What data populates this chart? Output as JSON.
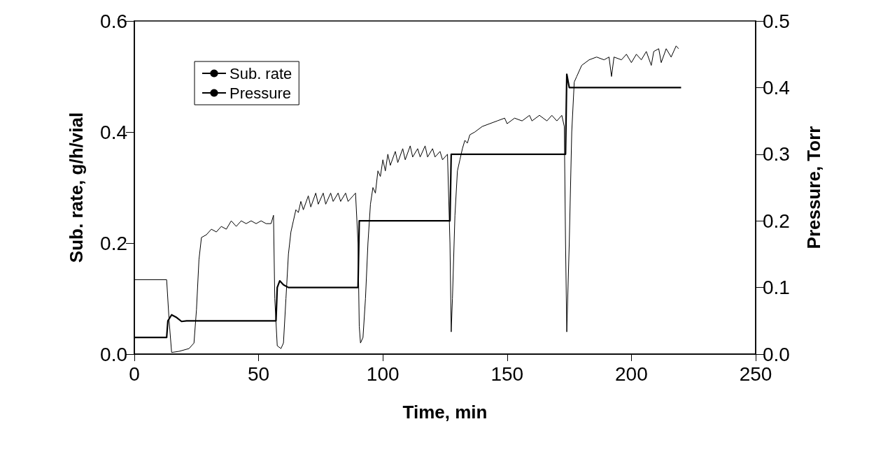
{
  "chart_data": {
    "type": "line",
    "xlabel": "Time, min",
    "ylabel": "Sub. rate, g/h/vial",
    "y2label": "Pressure, Torr",
    "xlim": [
      0,
      250
    ],
    "xticks": [
      0,
      50,
      100,
      150,
      200,
      250
    ],
    "ylim": [
      0,
      0.6
    ],
    "yticks": [
      {
        "value": 0,
        "label": "0.0"
      },
      0.2,
      0.4,
      0.6
    ],
    "y2lim": [
      0,
      0.5
    ],
    "y2ticks": [
      {
        "value": 0,
        "label": "0.0"
      },
      0.1,
      0.2,
      0.3,
      0.4,
      0.5
    ],
    "grid": false,
    "legend": "top left",
    "marker": "none",
    "line_style": "solid",
    "series": [
      {
        "name": "Sub. rate",
        "color": "#000000",
        "x": [
          0,
          13,
          14,
          15,
          18,
          22,
          24,
          25,
          26,
          27,
          29,
          31,
          33,
          35,
          37,
          39,
          41,
          43,
          45,
          47,
          49,
          51,
          53,
          55,
          56,
          56.5,
          57.5,
          59,
          60,
          61,
          62,
          63,
          64,
          65,
          66,
          67,
          68,
          70,
          71,
          73,
          74,
          76,
          77,
          79,
          80,
          82,
          83,
          85,
          86,
          88,
          89,
          90,
          90.5,
          91,
          92,
          93,
          94,
          95,
          96,
          97,
          98,
          99,
          100,
          101,
          102,
          103,
          105,
          106,
          108,
          109,
          111,
          112,
          114,
          115,
          117,
          118,
          120,
          121,
          123,
          124,
          126,
          127,
          127.5,
          128,
          129,
          130,
          131,
          132,
          133,
          134,
          135,
          137,
          140,
          143,
          146,
          149,
          150,
          153,
          156,
          159,
          160,
          163,
          166,
          168,
          170,
          172,
          173,
          173.5,
          174,
          175,
          176,
          177,
          178,
          180,
          183,
          186,
          189,
          191,
          192,
          193,
          196,
          198,
          200,
          202,
          204,
          206,
          208,
          209,
          211,
          212,
          214,
          216,
          218,
          219
        ],
        "values": [
          0.134,
          0.134,
          0.06,
          0.003,
          0.005,
          0.01,
          0.02,
          0.08,
          0.17,
          0.21,
          0.215,
          0.225,
          0.22,
          0.23,
          0.225,
          0.24,
          0.23,
          0.24,
          0.235,
          0.24,
          0.235,
          0.24,
          0.235,
          0.235,
          0.25,
          0.1,
          0.015,
          0.01,
          0.02,
          0.1,
          0.18,
          0.22,
          0.24,
          0.26,
          0.255,
          0.275,
          0.26,
          0.285,
          0.265,
          0.29,
          0.27,
          0.29,
          0.27,
          0.29,
          0.275,
          0.29,
          0.275,
          0.29,
          0.275,
          0.285,
          0.29,
          0.2,
          0.05,
          0.02,
          0.03,
          0.1,
          0.2,
          0.27,
          0.3,
          0.29,
          0.33,
          0.32,
          0.35,
          0.33,
          0.36,
          0.34,
          0.365,
          0.345,
          0.37,
          0.35,
          0.375,
          0.355,
          0.37,
          0.355,
          0.375,
          0.355,
          0.37,
          0.355,
          0.365,
          0.35,
          0.36,
          0.2,
          0.04,
          0.1,
          0.25,
          0.33,
          0.35,
          0.37,
          0.385,
          0.38,
          0.395,
          0.4,
          0.41,
          0.415,
          0.42,
          0.425,
          0.415,
          0.425,
          0.42,
          0.43,
          0.42,
          0.43,
          0.42,
          0.43,
          0.42,
          0.43,
          0.41,
          0.2,
          0.04,
          0.2,
          0.4,
          0.49,
          0.5,
          0.52,
          0.53,
          0.535,
          0.53,
          0.535,
          0.5,
          0.535,
          0.53,
          0.54,
          0.525,
          0.54,
          0.53,
          0.545,
          0.52,
          0.545,
          0.55,
          0.525,
          0.55,
          0.535,
          0.555,
          0.55
        ]
      },
      {
        "name": "Pressure",
        "color": "#000000",
        "axis": "y2",
        "x": [
          0,
          13,
          13.5,
          15,
          17,
          19,
          21,
          57,
          57.5,
          58.5,
          60,
          62,
          90,
          90.5,
          127,
          127.5,
          173.5,
          174,
          175,
          220
        ],
        "values": [
          0.025,
          0.025,
          0.05,
          0.059,
          0.055,
          0.049,
          0.05,
          0.05,
          0.1,
          0.11,
          0.104,
          0.1,
          0.1,
          0.2,
          0.2,
          0.3,
          0.3,
          0.42,
          0.4,
          0.4
        ]
      }
    ]
  }
}
